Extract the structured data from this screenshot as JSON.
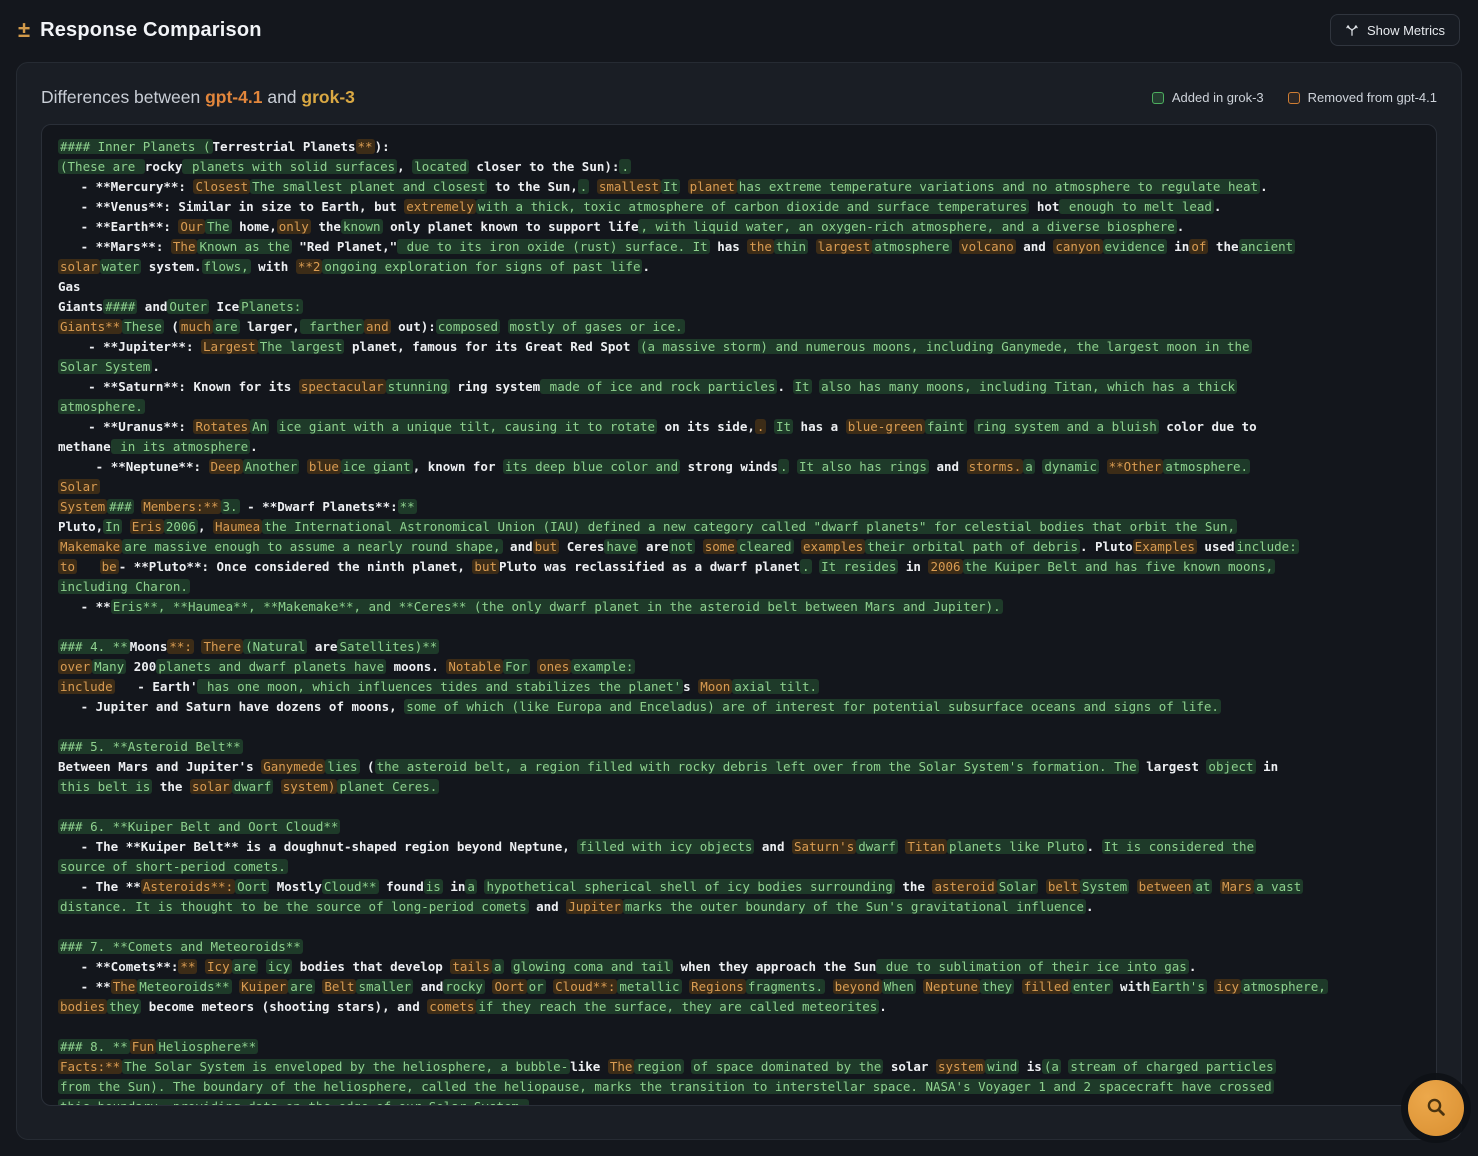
{
  "header": {
    "diff_glyph": "±",
    "title": "Response Comparison",
    "metrics_button": "Show Metrics"
  },
  "comparison": {
    "subtitle_prefix": "Differences between",
    "model_a": "gpt-4.1",
    "conjunction": "and",
    "model_b": "grok-3",
    "legend_added": "Added in grok-3",
    "legend_removed": "Removed from gpt-4.1"
  },
  "colors": {
    "added_text": "#8ed18e",
    "added_bg": "#1e3a29",
    "removed_text": "#d99c52",
    "removed_bg": "#3c2c17",
    "model_a_color": "#e2863c",
    "model_b_color": "#d9a843",
    "accent": "#d29a4a"
  },
  "fab": {
    "icon": "search-icon"
  },
  "diff_lines": [
    [
      [
        "a",
        "#### Inner Planets ("
      ],
      [
        "s",
        "Terrestrial Planets"
      ],
      [
        "d",
        "**"
      ],
      [
        "s",
        "):"
      ]
    ],
    [
      [
        "a",
        "(These are "
      ],
      [
        "s",
        "rocky"
      ],
      [
        "a",
        " planets with solid surfaces"
      ],
      [
        "s",
        ", "
      ],
      [
        "a",
        "located"
      ],
      [
        "s",
        " closer to the Sun"
      ],
      [
        "s",
        "):"
      ],
      [
        "a",
        "."
      ]
    ],
    [
      [
        "s",
        "   - **Mercury**: "
      ],
      [
        "d",
        "Closest"
      ],
      [
        "a",
        "The smallest planet and closest"
      ],
      [
        "s",
        " to the Sun,"
      ],
      [
        "a",
        "."
      ],
      [
        "s",
        " "
      ],
      [
        "d",
        "smallest"
      ],
      [
        "a",
        "It"
      ],
      [
        "s",
        " "
      ],
      [
        "d",
        "planet"
      ],
      [
        "a",
        "has extreme temperature variations and no atmosphere to regulate heat"
      ],
      [
        "s",
        "."
      ]
    ],
    [
      [
        "s",
        "   - **Venus**: Similar in size to Earth, but "
      ],
      [
        "d",
        "extremely"
      ],
      [
        "a",
        "with a thick, toxic atmosphere of carbon dioxide and surface temperatures"
      ],
      [
        "s",
        " hot"
      ],
      [
        "a",
        " enough to melt lead"
      ],
      [
        "s",
        "."
      ]
    ],
    [
      [
        "s",
        "   - **Earth**: "
      ],
      [
        "d",
        "Our"
      ],
      [
        "a",
        "The"
      ],
      [
        "s",
        " home,"
      ],
      [
        "d",
        "only"
      ],
      [
        "s",
        " the"
      ],
      [
        "a",
        "known"
      ],
      [
        "s",
        " only planet known to support life"
      ],
      [
        "a",
        ", with liquid water, an oxygen-rich atmosphere, and a diverse biosphere"
      ],
      [
        "s",
        "."
      ]
    ],
    [
      [
        "s",
        "   - **Mars**: "
      ],
      [
        "d",
        "The"
      ],
      [
        "a",
        "Known as the"
      ],
      [
        "s",
        " \"Red Planet,\""
      ],
      [
        "a",
        " due to its iron oxide (rust) surface. It"
      ],
      [
        "s",
        " has "
      ],
      [
        "d",
        "the"
      ],
      [
        "a",
        "thin"
      ],
      [
        "s",
        " "
      ],
      [
        "d",
        "largest"
      ],
      [
        "a",
        "atmosphere"
      ],
      [
        "s",
        " "
      ],
      [
        "d",
        "volcano"
      ],
      [
        "s",
        " and "
      ],
      [
        "d",
        "canyon"
      ],
      [
        "a",
        "evidence"
      ],
      [
        "s",
        " in"
      ],
      [
        "d",
        "of"
      ],
      [
        "s",
        " the"
      ],
      [
        "a",
        "ancient"
      ]
    ],
    [
      [
        "d",
        "solar"
      ],
      [
        "a",
        "water"
      ],
      [
        "s",
        " system."
      ],
      [
        "a",
        "flows,"
      ],
      [
        "s",
        " with "
      ],
      [
        "d",
        "**2"
      ],
      [
        "a",
        "ongoing exploration for signs of past life"
      ],
      [
        "s",
        "."
      ]
    ],
    [
      [
        "s",
        "Gas"
      ]
    ],
    [
      [
        "s",
        "Giants"
      ],
      [
        "a",
        "####"
      ],
      [
        "s",
        " and"
      ],
      [
        "a",
        "Outer"
      ],
      [
        "s",
        " Ice"
      ],
      [
        "a",
        "Planets:"
      ]
    ],
    [
      [
        "d",
        "Giants**"
      ],
      [
        "a",
        "These"
      ],
      [
        "s",
        " ("
      ],
      [
        "d",
        "much"
      ],
      [
        "a",
        "are"
      ],
      [
        "s",
        " larger,"
      ],
      [
        "a",
        " farther"
      ],
      [
        "d",
        "and"
      ],
      [
        "s",
        " out):"
      ],
      [
        "a",
        "composed"
      ],
      [
        "s",
        " "
      ],
      [
        "a",
        "mostly of gases or ice."
      ]
    ],
    [
      [
        "s",
        "    - **Jupiter**: "
      ],
      [
        "d",
        "Largest"
      ],
      [
        "a",
        "The largest"
      ],
      [
        "s",
        " planet, famous for its Great Red Spot "
      ],
      [
        "a",
        "(a massive storm) and numerous moons, including Ganymede, the largest moon in the"
      ]
    ],
    [
      [
        "a",
        "Solar System"
      ],
      [
        "s",
        "."
      ]
    ],
    [
      [
        "s",
        "    - **Saturn**: Known for its "
      ],
      [
        "d",
        "spectacular"
      ],
      [
        "a",
        "stunning"
      ],
      [
        "s",
        " ring system"
      ],
      [
        "a",
        " made of ice and rock particles"
      ],
      [
        "s",
        ". "
      ],
      [
        "a",
        "It"
      ],
      [
        "s",
        " "
      ],
      [
        "a",
        "also has many moons, including Titan, which has a thick"
      ]
    ],
    [
      [
        "a",
        "atmosphere."
      ]
    ],
    [
      [
        "s",
        "    - **Uranus**: "
      ],
      [
        "d",
        "Rotates"
      ],
      [
        "a",
        "An"
      ],
      [
        "s",
        " "
      ],
      [
        "a",
        "ice giant with a unique tilt, causing it to rotate"
      ],
      [
        "s",
        " on its side,"
      ],
      [
        "d",
        "."
      ],
      [
        "s",
        " "
      ],
      [
        "a",
        "It"
      ],
      [
        "s",
        " has a "
      ],
      [
        "d",
        "blue-green"
      ],
      [
        "a",
        "faint"
      ],
      [
        "s",
        " "
      ],
      [
        "a",
        "ring system and a bluish"
      ],
      [
        "s",
        " color due to"
      ]
    ],
    [
      [
        "s",
        "methane"
      ],
      [
        "a",
        " in its atmosphere"
      ],
      [
        "s",
        "."
      ]
    ],
    [
      [
        "s",
        "     - **Neptune**: "
      ],
      [
        "d",
        "Deep"
      ],
      [
        "a",
        "Another"
      ],
      [
        "s",
        " "
      ],
      [
        "d",
        "blue"
      ],
      [
        "a",
        "ice giant"
      ],
      [
        "s",
        ", known for "
      ],
      [
        "a",
        "its deep blue color and"
      ],
      [
        "s",
        " strong winds"
      ],
      [
        "a",
        "."
      ],
      [
        "s",
        " "
      ],
      [
        "a",
        "It also has rings"
      ],
      [
        "s",
        " and "
      ],
      [
        "d",
        "storms."
      ],
      [
        "a",
        "a"
      ],
      [
        "s",
        " "
      ],
      [
        "a",
        "dynamic"
      ],
      [
        "s",
        " "
      ],
      [
        "d",
        "**Other"
      ],
      [
        "a",
        "atmosphere."
      ]
    ],
    [
      [
        "d",
        "Solar"
      ]
    ],
    [
      [
        "d",
        "System"
      ],
      [
        "a",
        "###"
      ],
      [
        "s",
        " "
      ],
      [
        "d",
        "Members:**"
      ],
      [
        "a",
        "3."
      ],
      [
        "s",
        " - **Dwarf Planets**:"
      ],
      [
        "a",
        "**"
      ]
    ],
    [
      [
        "s",
        "Pluto,"
      ],
      [
        "a",
        "In"
      ],
      [
        "s",
        " "
      ],
      [
        "d",
        "Eris"
      ],
      [
        "a",
        "2006"
      ],
      [
        "s",
        ", "
      ],
      [
        "d",
        "Haumea"
      ],
      [
        "a",
        "the International Astronomical Union (IAU) defined a new category called \"dwarf planets\" for celestial bodies that orbit the Sun,"
      ]
    ],
    [
      [
        "d",
        "Makemake"
      ],
      [
        "a",
        "are massive enough to assume a nearly round shape,"
      ],
      [
        "s",
        " and"
      ],
      [
        "d",
        "but"
      ],
      [
        "s",
        " "
      ],
      [
        "s",
        "Ceres"
      ],
      [
        "a",
        "have"
      ],
      [
        "s",
        " are"
      ],
      [
        "a",
        "not"
      ],
      [
        "s",
        " "
      ],
      [
        "d",
        "some"
      ],
      [
        "a",
        "cleared"
      ],
      [
        "s",
        " "
      ],
      [
        "d",
        "examples"
      ],
      [
        "a",
        "their orbital path of debris"
      ],
      [
        "s",
        ". "
      ],
      [
        "s",
        "Pluto"
      ],
      [
        "d",
        "Examples"
      ],
      [
        "s",
        " used"
      ],
      [
        "a",
        "include:"
      ]
    ],
    [
      [
        "d",
        "to"
      ],
      [
        "s",
        "   "
      ],
      [
        "d",
        "be"
      ],
      [
        "s",
        "- **Pluto**: Once considered the ninth planet, "
      ],
      [
        "d",
        "but"
      ],
      [
        "s",
        "Pluto"
      ],
      [
        "s",
        " was reclassified as a dwarf planet"
      ],
      [
        "a",
        "."
      ],
      [
        "s",
        " "
      ],
      [
        "a",
        "It resides"
      ],
      [
        "s",
        " in "
      ],
      [
        "d",
        "2006"
      ],
      [
        "a",
        "the Kuiper Belt and has five known moons,"
      ]
    ],
    [
      [
        "a",
        "including Charon."
      ]
    ],
    [
      [
        "s",
        "   - **"
      ],
      [
        "a",
        "Eris**, **Haumea**, **Makemake**, and **Ceres** (the only dwarf planet in the asteroid belt between Mars and Jupiter)."
      ]
    ],
    [],
    [
      [
        "a",
        "### 4. **"
      ],
      [
        "s",
        "Moons"
      ],
      [
        "d",
        "**:"
      ],
      [
        "s",
        " "
      ],
      [
        "d",
        "There"
      ],
      [
        "a",
        "(Natural"
      ],
      [
        "s",
        " are"
      ],
      [
        "a",
        "Satellites)**"
      ]
    ],
    [
      [
        "d",
        "over"
      ],
      [
        "a",
        "Many"
      ],
      [
        "s",
        " 200"
      ],
      [
        "a",
        "planets and dwarf planets have"
      ],
      [
        "s",
        " moons. "
      ],
      [
        "d",
        "Notable"
      ],
      [
        "a",
        "For"
      ],
      [
        "s",
        " "
      ],
      [
        "d",
        "ones"
      ],
      [
        "a",
        "example:"
      ]
    ],
    [
      [
        "d",
        "include"
      ],
      [
        "s",
        "   - "
      ],
      [
        "s",
        "Earth'"
      ],
      [
        "a",
        " has one moon, which influences tides and stabilizes the planet'"
      ],
      [
        "s",
        "s "
      ],
      [
        "d",
        "Moon"
      ],
      [
        "a",
        "axial tilt."
      ]
    ],
    [
      [
        "s",
        "   - Jupiter and Saturn have dozens of moons, "
      ],
      [
        "a",
        "some of which (like Europa and Enceladus) are of interest for potential subsurface oceans and signs of life."
      ]
    ],
    [],
    [
      [
        "a",
        "### 5. **Asteroid Belt**"
      ]
    ],
    [
      [
        "s",
        "Between Mars and "
      ],
      [
        "s",
        "Jupiter's "
      ],
      [
        "d",
        "Ganymede"
      ],
      [
        "a",
        "lies"
      ],
      [
        "s",
        " ("
      ],
      [
        "a",
        "the asteroid belt, a region filled with rocky debris left over from the Solar System's formation. The"
      ],
      [
        "s",
        " largest "
      ],
      [
        "a",
        "object"
      ],
      [
        "s",
        " in"
      ]
    ],
    [
      [
        "a",
        "this belt is"
      ],
      [
        "s",
        " the "
      ],
      [
        "d",
        "solar"
      ],
      [
        "a",
        "dwarf"
      ],
      [
        "s",
        " "
      ],
      [
        "d",
        "system)"
      ],
      [
        "a",
        "planet Ceres."
      ]
    ],
    [],
    [
      [
        "a",
        "### 6. **Kuiper Belt and Oort Cloud**"
      ]
    ],
    [
      [
        "s",
        "   - The **Kuiper Belt** is a doughnut-shaped region beyond Neptune, "
      ],
      [
        "a",
        "filled with icy objects"
      ],
      [
        "s",
        " and "
      ],
      [
        "d",
        "Saturn's"
      ],
      [
        "a",
        "dwarf"
      ],
      [
        "s",
        " "
      ],
      [
        "d",
        "Titan"
      ],
      [
        "a",
        "planets like Pluto"
      ],
      [
        "s",
        ". "
      ],
      [
        "a",
        "It is considered the"
      ]
    ],
    [
      [
        "a",
        "source of short-period comets."
      ]
    ],
    [
      [
        "s",
        "   - The **"
      ],
      [
        "d",
        "Asteroids**:"
      ],
      [
        "a",
        "Oort"
      ],
      [
        "s",
        " "
      ],
      [
        "s",
        "Mostly"
      ],
      [
        "a",
        "Cloud**"
      ],
      [
        "s",
        " found"
      ],
      [
        "a",
        "is"
      ],
      [
        "s",
        " in"
      ],
      [
        "a",
        "a"
      ],
      [
        "s",
        " "
      ],
      [
        "a",
        "hypothetical spherical shell of icy bodies surrounding"
      ],
      [
        "s",
        " the "
      ],
      [
        "d",
        "asteroid"
      ],
      [
        "a",
        "Solar"
      ],
      [
        "s",
        " "
      ],
      [
        "d",
        "belt"
      ],
      [
        "a",
        "System"
      ],
      [
        "s",
        " "
      ],
      [
        "d",
        "between"
      ],
      [
        "a",
        "at"
      ],
      [
        "s",
        " "
      ],
      [
        "d",
        "Mars"
      ],
      [
        "a",
        "a vast"
      ]
    ],
    [
      [
        "a",
        "distance. It is thought to be the source of long-period comets"
      ],
      [
        "s",
        " and "
      ],
      [
        "d",
        "Jupiter"
      ],
      [
        "a",
        "marks the outer boundary of the Sun's gravitational influence"
      ],
      [
        "s",
        "."
      ]
    ],
    [],
    [
      [
        "a",
        "### 7. **Comets and Meteoroids**"
      ]
    ],
    [
      [
        "s",
        "   - **Comets**:"
      ],
      [
        "d",
        "**"
      ],
      [
        "s",
        " "
      ],
      [
        "d",
        "Icy"
      ],
      [
        "a",
        "are"
      ],
      [
        "s",
        " "
      ],
      [
        "a",
        "icy"
      ],
      [
        "s",
        " bodies that develop "
      ],
      [
        "d",
        "tails"
      ],
      [
        "a",
        "a"
      ],
      [
        "s",
        " "
      ],
      [
        "a",
        "glowing coma and tail"
      ],
      [
        "s",
        " when they approach the Sun"
      ],
      [
        "a",
        " due to sublimation of their ice into gas"
      ],
      [
        "s",
        "."
      ]
    ],
    [
      [
        "s",
        "   - **"
      ],
      [
        "d",
        "The"
      ],
      [
        "a",
        "Meteoroids**"
      ],
      [
        "s",
        " "
      ],
      [
        "d",
        "Kuiper"
      ],
      [
        "a",
        "are"
      ],
      [
        "s",
        " "
      ],
      [
        "d",
        "Belt"
      ],
      [
        "a",
        "smaller"
      ],
      [
        "s",
        " and"
      ],
      [
        "a",
        "rocky"
      ],
      [
        "s",
        " "
      ],
      [
        "d",
        "Oort"
      ],
      [
        "a",
        "or"
      ],
      [
        "s",
        " "
      ],
      [
        "d",
        "Cloud**:"
      ],
      [
        "a",
        "metallic"
      ],
      [
        "s",
        " "
      ],
      [
        "d",
        "Regions"
      ],
      [
        "a",
        "fragments."
      ],
      [
        "s",
        " "
      ],
      [
        "d",
        "beyond"
      ],
      [
        "a",
        "When"
      ],
      [
        "s",
        " "
      ],
      [
        "d",
        "Neptune"
      ],
      [
        "a",
        "they"
      ],
      [
        "s",
        " "
      ],
      [
        "d",
        "filled"
      ],
      [
        "a",
        "enter"
      ],
      [
        "s",
        " with"
      ],
      [
        "a",
        "Earth's"
      ],
      [
        "s",
        " "
      ],
      [
        "d",
        "icy"
      ],
      [
        "a",
        "atmosphere,"
      ]
    ],
    [
      [
        "d",
        "bodies"
      ],
      [
        "a",
        "they"
      ],
      [
        "s",
        " become meteors (shooting stars), and "
      ],
      [
        "d",
        "comets"
      ],
      [
        "a",
        "if they reach the surface, they are called meteorites"
      ],
      [
        "s",
        "."
      ]
    ],
    [],
    [
      [
        "a",
        "### 8. **"
      ],
      [
        "d",
        "Fun"
      ],
      [
        "a",
        "Heliosphere**"
      ]
    ],
    [
      [
        "d",
        "Facts:**"
      ],
      [
        "a",
        "The Solar System is enveloped by the heliosphere, a bubble-"
      ],
      [
        "s",
        "like"
      ],
      [
        "s",
        " "
      ],
      [
        "d",
        "The"
      ],
      [
        "a",
        "region"
      ],
      [
        "s",
        " "
      ],
      [
        "a",
        "of space dominated by the"
      ],
      [
        "s",
        " solar "
      ],
      [
        "d",
        "system"
      ],
      [
        "a",
        "wind"
      ],
      [
        "s",
        " is"
      ],
      [
        "a",
        "(a"
      ],
      [
        "s",
        " "
      ],
      [
        "a",
        "stream of charged particles"
      ]
    ],
    [
      [
        "a",
        "from the Sun). The boundary of the heliosphere, called the heliopause, marks the transition to interstellar space. NASA's Voyager 1 and 2 spacecraft have crossed"
      ]
    ],
    [
      [
        "a",
        "this boundary, providing data on the edge of our Solar System."
      ]
    ]
  ]
}
